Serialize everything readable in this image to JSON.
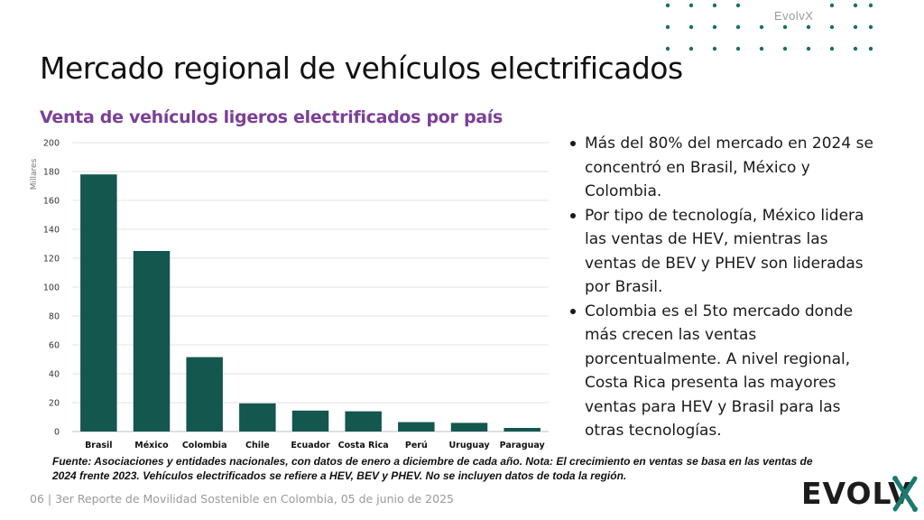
{
  "brand": {
    "top_label": "EvolvX",
    "logo_text": "EVOLVX",
    "accent_color": "#1a7a6e"
  },
  "title": "Mercado regional de vehículos electrificados",
  "chart_title": "Venta de vehículos ligeros electrificados por país",
  "chart_data": {
    "type": "bar",
    "title": "Venta de vehículos ligeros electrificados por país",
    "ylabel": "Millares",
    "xlabel": "",
    "categories": [
      "Brasil",
      "México",
      "Colombia",
      "Chile",
      "Ecuador",
      "Costa Rica",
      "Perú",
      "Uruguay",
      "Paraguay"
    ],
    "values": [
      178,
      125,
      51.5,
      19.5,
      14.5,
      14,
      6.5,
      6,
      2.5
    ],
    "ylim": [
      0,
      200
    ],
    "yticks": [
      0,
      20,
      40,
      60,
      80,
      100,
      120,
      140,
      160,
      180,
      200
    ],
    "grid": true,
    "bar_color": "#13574f"
  },
  "bullets": [
    "Más del 80% del mercado en 2024 se concentró en Brasil, México y Colombia.",
    "Por tipo de tecnología, México lidera las ventas de HEV, mientras las ventas de BEV y PHEV son lideradas por Brasil.",
    "Colombia es el 5to mercado donde más crecen las ventas porcentualmente. A nivel regional, Costa Rica presenta las mayores ventas para HEV y Brasil para las otras tecnologías."
  ],
  "source_note": "Fuente: Asociaciones y entidades nacionales, con datos de enero a diciembre de cada año. Nota: El crecimiento en ventas se basa en las ventas de 2024 frente 2023. Vehículos electrificados se refiere a HEV, BEV y PHEV. No se incluyen datos de toda la región.",
  "footer": "06 | 3er Reporte de Movilidad Sostenible en Colombia, 05 de junio de 2025"
}
